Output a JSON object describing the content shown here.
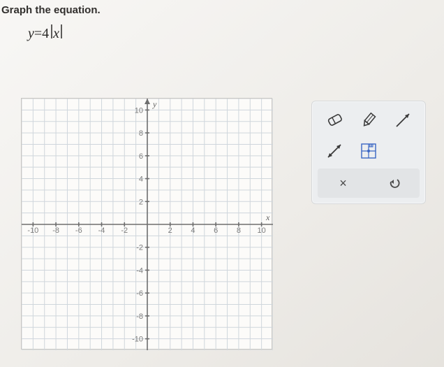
{
  "prompt": "Graph the equation.",
  "equation": {
    "lhs": "y",
    "eq": "=",
    "coef": "4",
    "var": "x"
  },
  "graph": {
    "type": "cartesian-grid",
    "xlim": [
      -11,
      11
    ],
    "ylim": [
      -11,
      11
    ],
    "tick_step": 2,
    "label_step": 2,
    "x_labels": [
      -10,
      -8,
      -6,
      -4,
      -2,
      2,
      4,
      6,
      8,
      10
    ],
    "y_labels": [
      10,
      8,
      6,
      4,
      2,
      -2,
      -4,
      -6,
      -8,
      -10
    ],
    "x_axis_label": "x",
    "y_axis_label": "y",
    "background_color": "#fcfbf9",
    "grid_color": "#cfd6dc",
    "axis_color": "#6e6e6e",
    "label_color": "#7c7c7c",
    "label_fontsize": 11
  },
  "palette": {
    "tools": [
      {
        "name": "eraser-icon"
      },
      {
        "name": "pencil-icon"
      },
      {
        "name": "ray-icon"
      },
      {
        "name": "line-arrows-icon"
      },
      {
        "name": "point-grid-icon"
      }
    ],
    "actions": {
      "clear_label": "×",
      "undo_label": "↺"
    },
    "panel_bg": "#eceef0",
    "action_bg": "#e2e4e6",
    "icon_stroke": "#3a3a3a",
    "grid_tool_color": "#3a66c4"
  }
}
